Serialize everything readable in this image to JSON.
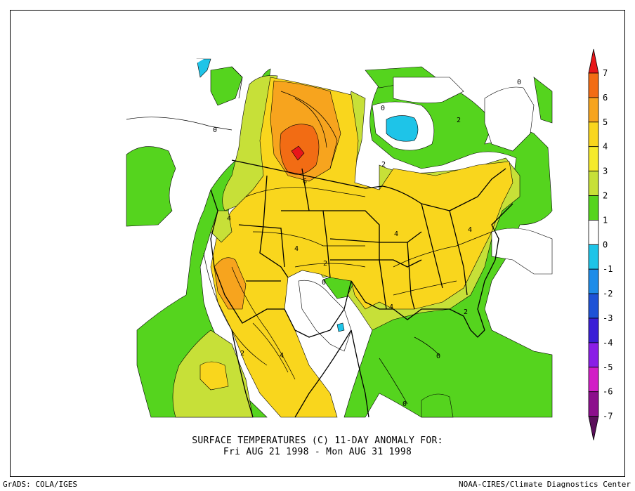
{
  "title_line1": "SURFACE TEMPERATURES (C)   11-DAY ANOMALY FOR:",
  "title_line2": "Fri AUG 21 1998 - Mon AUG 31 1998",
  "footer_left": "GrADS: COLA/IGES",
  "footer_right": "NOAA-CIRES/Climate Diagnostics Center",
  "colorbar": {
    "labels": [
      "7",
      "6",
      "5",
      "4",
      "3",
      "2",
      "1",
      "0",
      "-1",
      "-2",
      "-3",
      "-4",
      "-5",
      "-6",
      "-7"
    ],
    "colors": [
      "#e8161a",
      "#f26c14",
      "#f7a41e",
      "#f9d61d",
      "#f5ea2a",
      "#c7e038",
      "#55d41e",
      "#ffffff",
      "#1ec4e8",
      "#1e8ce8",
      "#1e52d6",
      "#3a1ed6",
      "#8a1ee6",
      "#d21ec6",
      "#8c0f8c",
      "#5a0f5a"
    ]
  },
  "contour_labels": [
    "6",
    "4",
    "2",
    "0"
  ]
}
